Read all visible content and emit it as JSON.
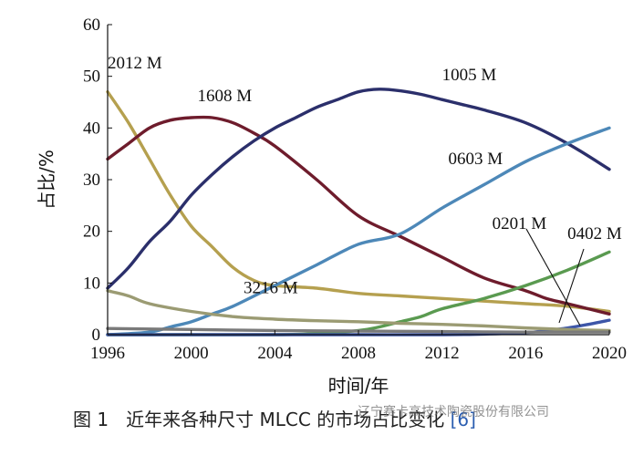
{
  "chart_data": {
    "type": "line",
    "xlabel": "时间/年",
    "ylabel": "占比/%",
    "xlim": [
      1996,
      2020
    ],
    "ylim": [
      0,
      60
    ],
    "xticks": [
      1996,
      2000,
      2004,
      2008,
      2012,
      2016,
      2020
    ],
    "yticks": [
      0,
      10,
      20,
      30,
      40,
      50,
      60
    ],
    "grid": false,
    "series": [
      {
        "name": "2012 M",
        "color": "#b5a04f",
        "x": [
          1996,
          1997,
          1998,
          1999,
          2000,
          2001,
          2002,
          2003,
          2004,
          2006,
          2008,
          2010,
          2012,
          2014,
          2016,
          2018,
          2020
        ],
        "y": [
          47,
          41,
          34,
          27,
          21,
          17,
          13,
          10.5,
          9.5,
          9,
          8,
          7.5,
          7,
          6.5,
          6,
          5.5,
          4.5
        ]
      },
      {
        "name": "1608 M",
        "color": "#6e1c2c",
        "x": [
          1996,
          1997,
          1998,
          1999,
          2000,
          2001,
          2002,
          2003,
          2004,
          2006,
          2008,
          2010,
          2012,
          2014,
          2016,
          2017,
          2018,
          2020
        ],
        "y": [
          34,
          37,
          40,
          41.5,
          42,
          42,
          41,
          39,
          36.5,
          30,
          23,
          19,
          15,
          11,
          8.5,
          7,
          6,
          4
        ]
      },
      {
        "name": "1005 M",
        "color": "#2b2f6b",
        "x": [
          1996,
          1997,
          1998,
          1999,
          2000,
          2001,
          2002,
          2003,
          2004,
          2005,
          2006,
          2007,
          2008,
          2009,
          2010,
          2011,
          2012,
          2013,
          2014,
          2016,
          2018,
          2020
        ],
        "y": [
          9,
          13,
          18,
          22,
          27,
          31,
          34.5,
          37.5,
          40,
          42,
          44,
          45.5,
          47,
          47.5,
          47.2,
          46.5,
          45.5,
          44.5,
          43.5,
          41,
          37,
          32
        ]
      },
      {
        "name": "0603 M",
        "color": "#4d88b8",
        "x": [
          1996,
          1998,
          1999,
          2000,
          2001,
          2002,
          2004,
          2006,
          2008,
          2010,
          2012,
          2014,
          2016,
          2018,
          2020
        ],
        "y": [
          0,
          0.5,
          1.5,
          2.5,
          4,
          5.5,
          9.5,
          13.5,
          17.5,
          19.5,
          24.5,
          29,
          33.5,
          37,
          40
        ]
      },
      {
        "name": "0402 M",
        "color": "#5a9a50",
        "x": [
          1996,
          2000,
          2004,
          2006,
          2008,
          2009,
          2010,
          2011,
          2012,
          2014,
          2016,
          2018,
          2020
        ],
        "y": [
          0,
          0,
          0,
          0.2,
          0.8,
          1.5,
          2.5,
          3.5,
          5,
          7,
          9.5,
          12.5,
          16
        ]
      },
      {
        "name": "0201 M",
        "color": "#3d56a8",
        "x": [
          1996,
          2000,
          2004,
          2008,
          2012,
          2014,
          2016,
          2017,
          2018,
          2019,
          2020
        ],
        "y": [
          0,
          0,
          0,
          0,
          0,
          0.1,
          0.4,
          0.8,
          1.3,
          2,
          2.8
        ]
      },
      {
        "name": "3216 M",
        "color": "#9b9b73",
        "x": [
          1996,
          1997,
          1998,
          2000,
          2002,
          2004,
          2006,
          2008,
          2010,
          2012,
          2014,
          2016,
          2018,
          2020
        ],
        "y": [
          8.5,
          7.5,
          6,
          4.5,
          3.5,
          3,
          2.7,
          2.5,
          2.2,
          2,
          1.7,
          1.3,
          1,
          0.8
        ]
      },
      {
        "name": "",
        "color": "#7a7a7a",
        "x": [
          1996,
          2000,
          2004,
          2008,
          2012,
          2016,
          2020
        ],
        "y": [
          1.2,
          1,
          0.8,
          0.7,
          0.6,
          0.5,
          0.5
        ]
      }
    ],
    "annotations": [
      {
        "text": "2012 M",
        "x": 1996,
        "y": 51.5
      },
      {
        "text": "1608 M",
        "x": 2000.3,
        "y": 45.2
      },
      {
        "text": "1005 M",
        "x": 2012,
        "y": 49.2
      },
      {
        "text": "0603 M",
        "x": 2012.3,
        "y": 33
      },
      {
        "text": "3216 M",
        "x": 2002.5,
        "y": 8
      },
      {
        "text": "0201 M",
        "x": 2014.4,
        "y": 20.5
      },
      {
        "text": "0402 M",
        "x": 2018,
        "y": 18.5
      }
    ]
  },
  "figure": {
    "caption_label": "图 1",
    "caption_text": "近年来各种尺寸 MLCC 的市场占比变化",
    "caption_ref": "[6]",
    "watermark_text": "辽宁赛卡高技术陶瓷股份有限公司"
  }
}
